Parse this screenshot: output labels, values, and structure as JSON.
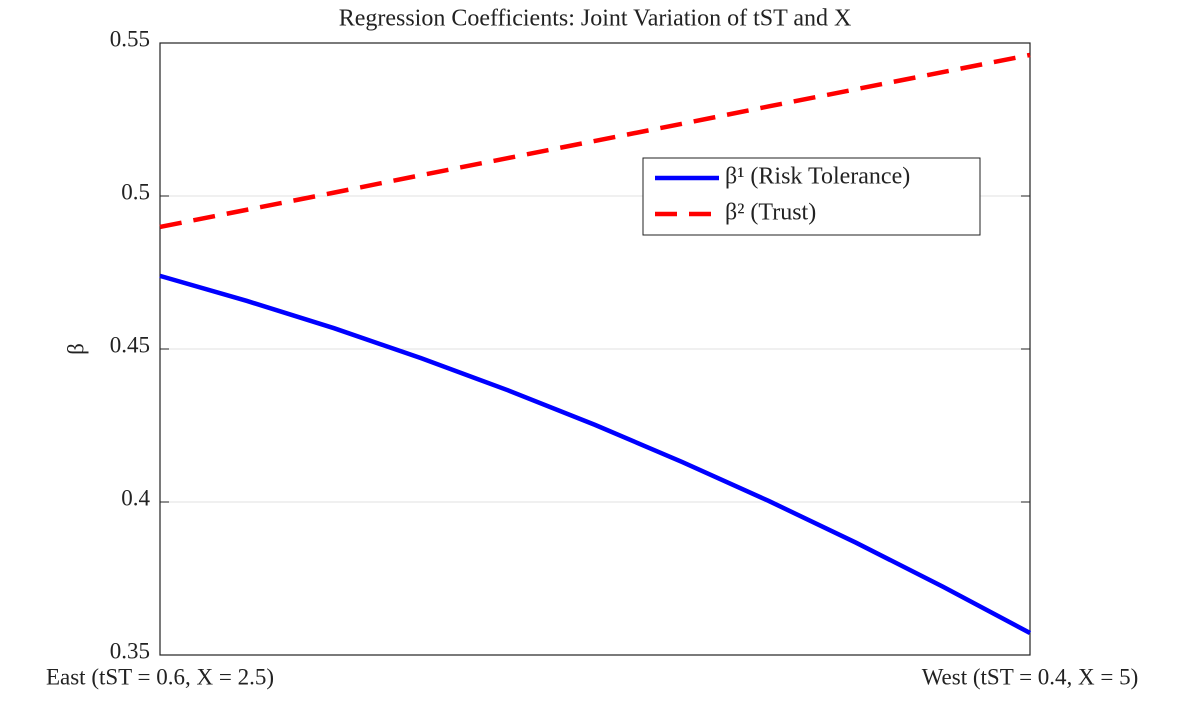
{
  "chart_data": {
    "type": "line",
    "title": "Regression Coefficients: Joint Variation of tST and X",
    "y_label": "β",
    "x": [
      0,
      0.1,
      0.2,
      0.3,
      0.4,
      0.5,
      0.6,
      0.7,
      0.8,
      0.9,
      1
    ],
    "xlim": [
      0,
      1
    ],
    "xticks": [
      {
        "value": 0,
        "label": "East (tST = 0.6,  X = 2.5)"
      },
      {
        "value": 1,
        "label": "West (tST = 0.4,  X = 5)"
      }
    ],
    "ylim": [
      0.35,
      0.55
    ],
    "yticks": [
      0.35,
      0.4,
      0.45,
      0.5,
      0.55
    ],
    "grid": true,
    "legend": "upper right",
    "series": [
      {
        "name": "β¹ (Risk Tolerance)",
        "color": "#0000ff",
        "dash": "solid",
        "values": [
          0.4739,
          0.4657,
          0.4568,
          0.447,
          0.4365,
          0.4252,
          0.4131,
          0.4003,
          0.3867,
          0.3723,
          0.3572
        ]
      },
      {
        "name": "β² (Trust)",
        "color": "#ff0000",
        "dash": "dashed",
        "values": [
          0.4899,
          0.4955,
          0.5011,
          0.5068,
          0.5124,
          0.518,
          0.5236,
          0.5293,
          0.5349,
          0.5405,
          0.5461
        ]
      }
    ]
  }
}
